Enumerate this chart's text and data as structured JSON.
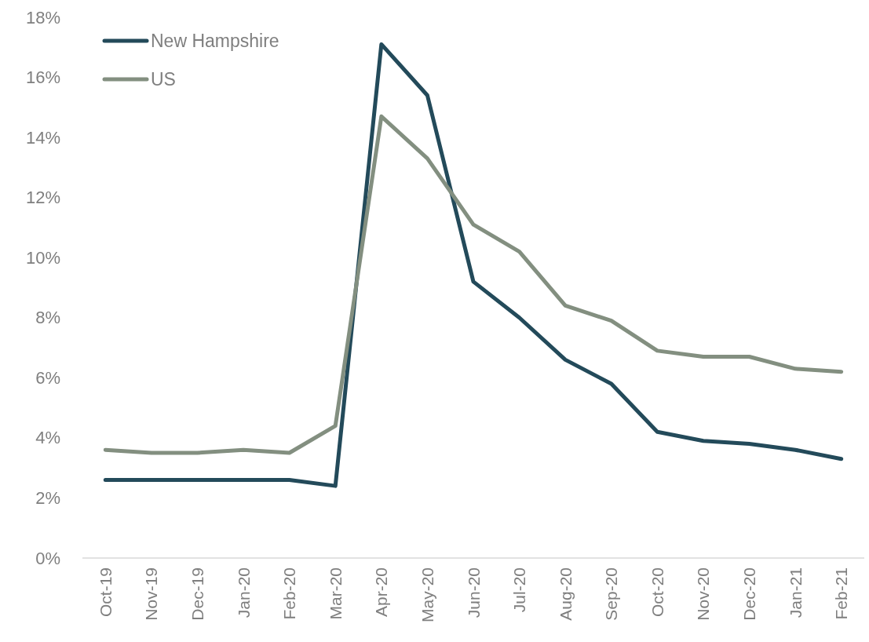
{
  "chart_data": {
    "type": "line",
    "categories": [
      "Oct-19",
      "Nov-19",
      "Dec-19",
      "Jan-20",
      "Feb-20",
      "Mar-20",
      "Apr-20",
      "May-20",
      "Jun-20",
      "Jul-20",
      "Aug-20",
      "Sep-20",
      "Oct-20",
      "Nov-20",
      "Dec-20",
      "Jan-21",
      "Feb-21"
    ],
    "series": [
      {
        "name": "New Hampshire",
        "color": "#234a5a",
        "values": [
          2.6,
          2.6,
          2.6,
          2.6,
          2.6,
          2.4,
          17.1,
          15.4,
          9.2,
          8.0,
          6.6,
          5.8,
          4.2,
          3.9,
          3.8,
          3.6,
          3.3
        ]
      },
      {
        "name": "US",
        "color": "#838f80",
        "values": [
          3.6,
          3.5,
          3.5,
          3.6,
          3.5,
          4.4,
          14.7,
          13.3,
          11.1,
          10.2,
          8.4,
          7.9,
          6.9,
          6.7,
          6.7,
          6.3,
          6.2
        ]
      }
    ],
    "ylim": [
      0,
      18
    ],
    "yticks": [
      {
        "value": 0,
        "label": "0%"
      },
      {
        "value": 2,
        "label": "2%"
      },
      {
        "value": 4,
        "label": "4%"
      },
      {
        "value": 6,
        "label": "6%"
      },
      {
        "value": 8,
        "label": "8%"
      },
      {
        "value": 10,
        "label": "10%"
      },
      {
        "value": 12,
        "label": "12%"
      },
      {
        "value": 14,
        "label": "14%"
      },
      {
        "value": 16,
        "label": "16%"
      },
      {
        "value": 18,
        "label": "18%"
      }
    ],
    "grid": false,
    "legend": "top left",
    "marker": "none",
    "line_style": "solid"
  }
}
